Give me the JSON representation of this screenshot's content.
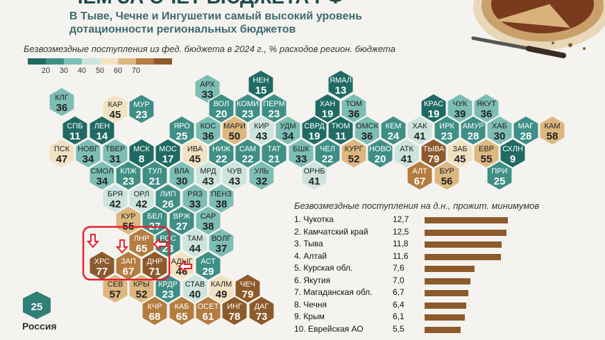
{
  "header": {
    "title": "ЧЕМ ЗА СЧЕТ БЮДЖЕТА РФ",
    "subtitle": "В Тыве, Чечне и Ингушетии самый высокий уровень дотационности региональных бюджетов"
  },
  "legend": {
    "title": "Безвозмездные поступления из фед. бюджета в 2024 г., % расходов регион. бюджета",
    "ticks": [
      "20",
      "30",
      "40",
      "50",
      "60",
      "70"
    ],
    "colors": [
      "#1f6b64",
      "#3f8f86",
      "#7cbdb4",
      "#cde4de",
      "#f1e3c2",
      "#dcb77f",
      "#b47c3f",
      "#8c5a2b"
    ]
  },
  "chart_data": {
    "type": "heatmap",
    "title": "Безвозмездные поступления из фед. бюджета в 2024 г., % расходов регион. бюджета",
    "regions": [
      {
        "code": "АРХ",
        "value": 33
      },
      {
        "code": "НЕН",
        "value": 15
      },
      {
        "code": "ЯМАЛ",
        "value": 13
      },
      {
        "code": "КЛГ",
        "value": 36
      },
      {
        "code": "КАР",
        "value": 45
      },
      {
        "code": "МУР",
        "value": 23
      },
      {
        "code": "ВОЛ",
        "value": 20
      },
      {
        "code": "КОМИ",
        "value": 23
      },
      {
        "code": "ПЕРМ",
        "value": 23
      },
      {
        "code": "ХАН",
        "value": 19
      },
      {
        "code": "ТОМ",
        "value": 36
      },
      {
        "code": "КРАС",
        "value": 19
      },
      {
        "code": "ЧУК",
        "value": 39
      },
      {
        "code": "ЯКУТ",
        "value": 36
      },
      {
        "code": "СПБ",
        "value": 11
      },
      {
        "code": "ЛЕН",
        "value": 14
      },
      {
        "code": "ЯРО",
        "value": 25
      },
      {
        "code": "КОС",
        "value": 36
      },
      {
        "code": "МАРИ",
        "value": 50
      },
      {
        "code": "КИР",
        "value": 43
      },
      {
        "code": "УДМ",
        "value": 34
      },
      {
        "code": "СВРД",
        "value": 19
      },
      {
        "code": "ТЮМ",
        "value": 11
      },
      {
        "code": "ОМСК",
        "value": 36
      },
      {
        "code": "КЕМ",
        "value": 24
      },
      {
        "code": "ХАК",
        "value": 41
      },
      {
        "code": "ИРК",
        "value": 23
      },
      {
        "code": "АМУР",
        "value": 28
      },
      {
        "code": "ХАБ",
        "value": 30
      },
      {
        "code": "МАГ",
        "value": 28
      },
      {
        "code": "КАМ",
        "value": 58
      },
      {
        "code": "ПСК",
        "value": 47
      },
      {
        "code": "НОВГ",
        "value": 34
      },
      {
        "code": "ТВЕР",
        "value": 31
      },
      {
        "code": "МСК",
        "value": 8
      },
      {
        "code": "МОС",
        "value": 17
      },
      {
        "code": "ИВА",
        "value": 45
      },
      {
        "code": "НИЖ",
        "value": 22
      },
      {
        "code": "САМ",
        "value": 22
      },
      {
        "code": "ТАТ",
        "value": 21
      },
      {
        "code": "БШК",
        "value": 33
      },
      {
        "code": "ЧЕЛ",
        "value": 22
      },
      {
        "code": "КУРГ",
        "value": 52
      },
      {
        "code": "НОВО",
        "value": 20
      },
      {
        "code": "АТК",
        "value": 41
      },
      {
        "code": "ТЫВА",
        "value": 79
      },
      {
        "code": "ЗАБ",
        "value": 45
      },
      {
        "code": "ЕВР",
        "value": 55
      },
      {
        "code": "СХЛН",
        "value": 9
      },
      {
        "code": "СМОЛ",
        "value": 34
      },
      {
        "code": "КЛЖ",
        "value": 23
      },
      {
        "code": "ТУЛ",
        "value": 21
      },
      {
        "code": "ВЛА",
        "value": 30
      },
      {
        "code": "МРД",
        "value": 43
      },
      {
        "code": "ЧУВ",
        "value": 43
      },
      {
        "code": "УЛЬ",
        "value": 32
      },
      {
        "code": "ОРНБ",
        "value": 41
      },
      {
        "code": "АЛТ",
        "value": 67
      },
      {
        "code": "БУР",
        "value": 56
      },
      {
        "code": "ПРИ",
        "value": 25
      },
      {
        "code": "БРЯ",
        "value": 42
      },
      {
        "code": "ОРЛ",
        "value": 42
      },
      {
        "code": "ЛИП",
        "value": 26
      },
      {
        "code": "РЯЗ",
        "value": 33
      },
      {
        "code": "ПЕНЗ",
        "value": 38
      },
      {
        "code": "КУР",
        "value": 55
      },
      {
        "code": "БЕЛ",
        "value": 27
      },
      {
        "code": "ВРЖ",
        "value": 27
      },
      {
        "code": "САР",
        "value": 38
      },
      {
        "code": "ЛНР",
        "value": 65
      },
      {
        "code": "РОС",
        "value": 23
      },
      {
        "code": "ТАМ",
        "value": 44
      },
      {
        "code": "ВОЛГ",
        "value": 37
      },
      {
        "code": "ХРС",
        "value": 77
      },
      {
        "code": "ЗАП",
        "value": 67
      },
      {
        "code": "ДНР",
        "value": 71
      },
      {
        "code": "АДЫГ",
        "value": 46
      },
      {
        "code": "АСТ",
        "value": 29
      },
      {
        "code": "СЕВ",
        "value": 57
      },
      {
        "code": "КРЫ",
        "value": 52
      },
      {
        "code": "КРДР",
        "value": 23
      },
      {
        "code": "СТАВ",
        "value": 40
      },
      {
        "code": "КАЛМ",
        "value": 49
      },
      {
        "code": "ЧЕЧ",
        "value": 79
      },
      {
        "code": "КЧР",
        "value": 68
      },
      {
        "code": "КАБ",
        "value": 65
      },
      {
        "code": "ОСЕТ",
        "value": 61
      },
      {
        "code": "ИНГ",
        "value": 78
      },
      {
        "code": "ДАГ",
        "value": 73
      }
    ]
  },
  "ranking": {
    "title": "Безвозмездные поступления на д.н., прожит. минимумов",
    "items": [
      {
        "label": "1. Чукотка",
        "value": "12,7",
        "num": 12.7
      },
      {
        "label": "2. Камчатский край",
        "value": "12,5",
        "num": 12.5
      },
      {
        "label": "3. Тыва",
        "value": "11,8",
        "num": 11.8
      },
      {
        "label": "4. Алтай",
        "value": "11,6",
        "num": 11.6
      },
      {
        "label": "5. Курская обл.",
        "value": "7,6",
        "num": 7.6
      },
      {
        "label": "6. Якутия",
        "value": "7,0",
        "num": 7.0
      },
      {
        "label": "7. Магаданская обл.",
        "value": "6,7",
        "num": 6.7
      },
      {
        "label": "8. Чечня",
        "value": "6,4",
        "num": 6.4
      },
      {
        "label": "9. Крым",
        "value": "6,1",
        "num": 6.1
      },
      {
        "label": "10. Еврейская АО",
        "value": "5,5",
        "num": 5.5
      }
    ]
  },
  "russia": {
    "value": "25",
    "label": "Россия"
  }
}
